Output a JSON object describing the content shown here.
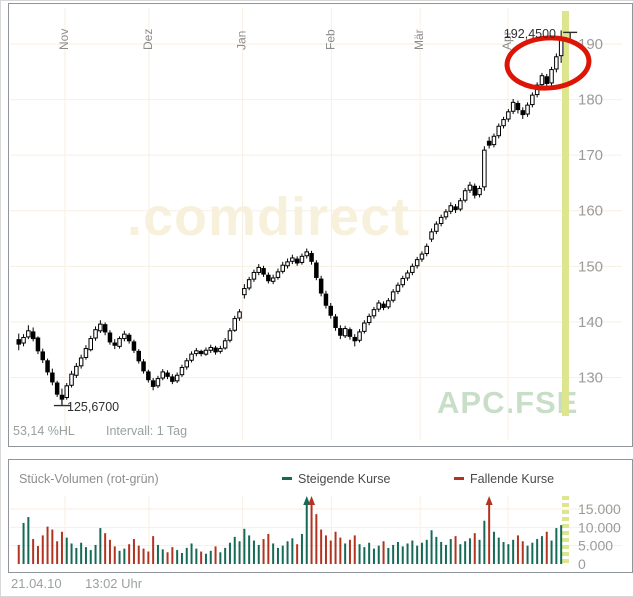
{
  "colors": {
    "up_volume": "#156a57",
    "down_volume": "#b23320",
    "candle": "#000000",
    "grid": "#f7efe2",
    "band": "#dee58f",
    "axis_text": "#9b9b9b",
    "month_text": "#8c8c8c",
    "annotation_circle": "#dd1507",
    "annotation_text": "#2e2e2e"
  },
  "chart_data": [
    {
      "type": "candlestick",
      "title": "",
      "symbol": "APC.FSE",
      "watermark": ".comdirect",
      "interval": "Intervall: 1 Tag",
      "percent_hl": "53,14 %HL",
      "low_annotation": "125,6700",
      "high_annotation": "192,4500",
      "ylim": [
        124.5,
        194.5
      ],
      "y_ticks": [
        {
          "v": 190,
          "label": "190"
        },
        {
          "v": 180,
          "label": "180"
        },
        {
          "v": 170,
          "label": "170"
        },
        {
          "v": 160,
          "label": "160"
        },
        {
          "v": 150,
          "label": "150"
        },
        {
          "v": 140,
          "label": "140"
        },
        {
          "v": 130,
          "label": "130"
        }
      ],
      "months": [
        {
          "label": "Nov",
          "i": 10
        },
        {
          "label": "Dez",
          "i": 27.5
        },
        {
          "label": "Jan",
          "i": 47
        },
        {
          "label": "Feb",
          "i": 65.5
        },
        {
          "label": "Mär",
          "i": 84
        },
        {
          "label": "Apr",
          "i": 102.3
        }
      ],
      "low_index": 9,
      "low_value": 125.67,
      "high_index": 113,
      "high_value": 192.45,
      "candles": [
        [
          136.8,
          137.9,
          134.9,
          136.0
        ],
        [
          136.2,
          137.8,
          135.6,
          137.2
        ],
        [
          137.3,
          139.4,
          136.9,
          138.4
        ],
        [
          138.2,
          139.0,
          136.5,
          137.0
        ],
        [
          137.1,
          137.4,
          134.2,
          134.8
        ],
        [
          134.6,
          135.2,
          132.6,
          133.2
        ],
        [
          133.0,
          133.4,
          130.4,
          131.0
        ],
        [
          130.8,
          131.6,
          128.6,
          129.2
        ],
        [
          129.0,
          129.4,
          126.5,
          127.0
        ],
        [
          126.8,
          128.0,
          125.67,
          126.1
        ],
        [
          126.4,
          129.0,
          126.0,
          128.5
        ],
        [
          128.6,
          131.2,
          128.2,
          130.6
        ],
        [
          130.4,
          132.6,
          129.9,
          132.0
        ],
        [
          132.1,
          134.1,
          131.6,
          133.5
        ],
        [
          133.6,
          135.8,
          133.2,
          135.2
        ],
        [
          135.0,
          137.5,
          134.7,
          137.0
        ],
        [
          137.1,
          139.2,
          136.6,
          138.6
        ],
        [
          138.4,
          140.3,
          138.0,
          139.6
        ],
        [
          139.5,
          139.9,
          137.6,
          138.2
        ],
        [
          138.0,
          138.5,
          135.9,
          136.4
        ],
        [
          136.2,
          136.9,
          135.1,
          135.8
        ],
        [
          135.6,
          137.4,
          135.2,
          137.0
        ],
        [
          137.0,
          138.4,
          136.5,
          137.8
        ],
        [
          137.6,
          138.0,
          136.1,
          136.6
        ],
        [
          136.4,
          136.8,
          134.4,
          134.9
        ],
        [
          134.7,
          135.1,
          132.5,
          133.0
        ],
        [
          132.8,
          133.3,
          130.7,
          131.2
        ],
        [
          131.0,
          131.4,
          129.1,
          129.6
        ],
        [
          129.4,
          129.9,
          127.7,
          128.4
        ],
        [
          128.5,
          130.3,
          128.1,
          129.8
        ],
        [
          129.9,
          131.5,
          129.5,
          131.0
        ],
        [
          130.8,
          131.3,
          129.7,
          130.2
        ],
        [
          130.1,
          130.6,
          128.8,
          129.3
        ],
        [
          129.4,
          130.9,
          129.0,
          130.4
        ],
        [
          130.5,
          132.3,
          130.1,
          131.8
        ],
        [
          131.9,
          133.5,
          131.4,
          133.0
        ],
        [
          133.1,
          134.7,
          132.7,
          134.2
        ],
        [
          134.3,
          135.3,
          133.8,
          134.8
        ],
        [
          134.7,
          135.0,
          133.8,
          134.3
        ],
        [
          134.2,
          135.4,
          133.9,
          134.9
        ],
        [
          134.9,
          135.9,
          134.4,
          135.4
        ],
        [
          135.3,
          135.7,
          134.1,
          134.6
        ],
        [
          134.7,
          135.7,
          134.3,
          135.2
        ],
        [
          135.3,
          137.1,
          135.0,
          136.6
        ],
        [
          136.7,
          138.9,
          136.3,
          138.4
        ],
        [
          138.5,
          141.1,
          138.2,
          140.6
        ],
        [
          140.7,
          142.3,
          140.2,
          141.8
        ],
        [
          144.9,
          146.8,
          144.2,
          146.0
        ],
        [
          146.1,
          148.1,
          145.7,
          147.6
        ],
        [
          147.7,
          149.4,
          147.2,
          148.9
        ],
        [
          148.9,
          150.4,
          148.4,
          149.8
        ],
        [
          149.6,
          150.1,
          148.1,
          148.6
        ],
        [
          148.4,
          148.9,
          146.9,
          147.4
        ],
        [
          147.3,
          148.5,
          146.8,
          147.9
        ],
        [
          148.0,
          149.6,
          147.6,
          149.0
        ],
        [
          149.1,
          150.8,
          148.7,
          150.2
        ],
        [
          150.1,
          151.4,
          149.6,
          150.8
        ],
        [
          150.9,
          152.1,
          150.4,
          151.5
        ],
        [
          151.3,
          151.8,
          150.1,
          150.6
        ],
        [
          150.7,
          152.3,
          150.3,
          151.8
        ],
        [
          151.9,
          153.2,
          151.4,
          152.6
        ],
        [
          152.3,
          152.8,
          150.3,
          150.9
        ],
        [
          150.6,
          151.1,
          147.5,
          148.0
        ],
        [
          147.7,
          148.3,
          144.6,
          145.2
        ],
        [
          145.0,
          145.6,
          142.4,
          143.0
        ],
        [
          142.8,
          143.4,
          140.6,
          141.2
        ],
        [
          140.9,
          141.4,
          138.4,
          139.0
        ],
        [
          138.8,
          139.4,
          136.9,
          137.6
        ],
        [
          137.5,
          139.3,
          137.1,
          138.8
        ],
        [
          138.6,
          139.0,
          136.8,
          137.4
        ],
        [
          137.2,
          137.8,
          135.6,
          136.6
        ],
        [
          136.7,
          138.7,
          136.3,
          138.2
        ],
        [
          138.3,
          140.3,
          137.9,
          139.8
        ],
        [
          139.9,
          141.5,
          139.4,
          141.0
        ],
        [
          141.1,
          142.7,
          140.6,
          142.2
        ],
        [
          142.3,
          143.9,
          141.8,
          143.4
        ],
        [
          143.2,
          143.7,
          142.1,
          142.6
        ],
        [
          142.7,
          144.3,
          142.3,
          143.8
        ],
        [
          143.9,
          145.9,
          143.5,
          145.4
        ],
        [
          145.5,
          147.1,
          145.0,
          146.6
        ],
        [
          146.7,
          148.3,
          146.2,
          147.8
        ],
        [
          147.9,
          149.3,
          147.4,
          148.8
        ],
        [
          148.9,
          150.5,
          148.4,
          150.0
        ],
        [
          150.1,
          151.7,
          149.6,
          151.2
        ],
        [
          151.3,
          152.7,
          150.8,
          152.2
        ],
        [
          152.3,
          154.1,
          151.8,
          153.6
        ],
        [
          154.9,
          156.8,
          154.4,
          156.2
        ],
        [
          156.3,
          158.1,
          155.8,
          157.6
        ],
        [
          157.7,
          159.3,
          157.2,
          158.8
        ],
        [
          158.9,
          160.3,
          158.4,
          159.8
        ],
        [
          159.9,
          161.5,
          159.4,
          160.9
        ],
        [
          160.7,
          161.2,
          159.6,
          160.2
        ],
        [
          160.3,
          162.3,
          159.9,
          161.8
        ],
        [
          161.9,
          164.1,
          161.5,
          163.6
        ],
        [
          163.7,
          165.2,
          163.2,
          164.6
        ],
        [
          164.4,
          164.9,
          162.2,
          162.8
        ],
        [
          162.9,
          164.5,
          162.4,
          164.0
        ],
        [
          164.3,
          171.6,
          163.6,
          170.9
        ],
        [
          172.5,
          173.3,
          171.2,
          171.8
        ],
        [
          171.9,
          173.9,
          171.4,
          173.4
        ],
        [
          173.5,
          175.7,
          173.0,
          175.2
        ],
        [
          175.3,
          176.9,
          174.8,
          176.4
        ],
        [
          176.5,
          178.3,
          176.0,
          177.8
        ],
        [
          177.9,
          180.1,
          177.4,
          179.5
        ],
        [
          179.3,
          179.8,
          177.5,
          178.2
        ],
        [
          178.0,
          178.6,
          176.5,
          177.3
        ],
        [
          177.4,
          179.5,
          176.9,
          179.0
        ],
        [
          179.1,
          181.3,
          178.6,
          180.8
        ],
        [
          180.9,
          183.1,
          180.4,
          182.6
        ],
        [
          182.7,
          184.8,
          182.2,
          184.3
        ],
        [
          184.1,
          184.6,
          182.2,
          182.9
        ],
        [
          183.0,
          185.9,
          182.5,
          185.4
        ],
        [
          185.5,
          188.3,
          184.9,
          187.7
        ],
        [
          187.9,
          192.45,
          186.6,
          190.9
        ]
      ]
    },
    {
      "type": "bar",
      "title": "Stück-Volumen (rot-grün)",
      "legend": [
        {
          "label": "Steigende Kurse",
          "color": "#156a57"
        },
        {
          "label": "Fallende Kurse",
          "color": "#b23320"
        }
      ],
      "y_ticks": [
        {
          "v": 15000,
          "label": "15.000"
        },
        {
          "v": 10000,
          "label": "10.000"
        },
        {
          "v": 5000,
          "label": "5.000"
        },
        {
          "v": 0,
          "label": "0"
        }
      ],
      "ylim": [
        0,
        17500
      ],
      "clip": 15800,
      "values": [
        5200,
        11200,
        12800,
        6800,
        4900,
        7800,
        10200,
        9400,
        6200,
        8800,
        7200,
        5600,
        4400,
        5800,
        4600,
        3800,
        5200,
        9800,
        8400,
        6600,
        4800,
        3600,
        4200,
        5400,
        6800,
        5000,
        4200,
        3400,
        7600,
        5200,
        4000,
        3200,
        4600,
        3800,
        3000,
        4400,
        5600,
        4200,
        3400,
        2800,
        3600,
        4800,
        3200,
        4400,
        5800,
        7400,
        6200,
        9600,
        7800,
        6400,
        5200,
        6800,
        8200,
        5600,
        4400,
        5000,
        6200,
        7000,
        5400,
        8200,
        17200,
        16900,
        13600,
        9400,
        7800,
        6400,
        8800,
        7200,
        5600,
        6600,
        7800,
        5400,
        4600,
        5800,
        4200,
        5000,
        6200,
        4400,
        5200,
        6000,
        4800,
        5600,
        6400,
        5000,
        5800,
        6600,
        9200,
        7400,
        6000,
        5200,
        6800,
        7600,
        5400,
        6200,
        7000,
        8400,
        6600,
        11800,
        16500,
        8800,
        7200,
        6000,
        5400,
        6600,
        7800,
        6200,
        5000,
        5800,
        6800,
        7600,
        8800,
        6400,
        9800,
        10600
      ]
    }
  ],
  "footer": {
    "date": "21.04.10",
    "time": "13:02 Uhr"
  }
}
